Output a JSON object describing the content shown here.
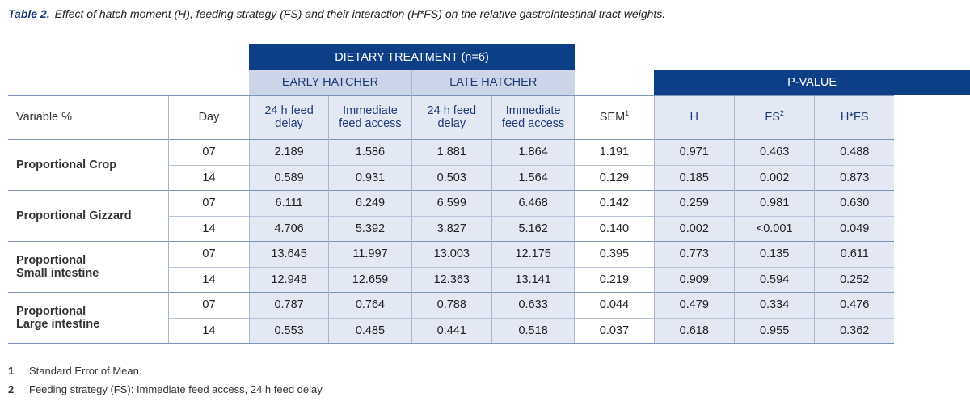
{
  "caption": {
    "label": "Table 2.",
    "text": "Effect of hatch moment (H), feeding strategy (FS) and their interaction (H*FS) on the relative gastrointestinal tract weights."
  },
  "header": {
    "dietary": "DIETARY TREATMENT (n=6)",
    "early": "EARLY HATCHER",
    "late": "LATE HATCHER",
    "pvalue": "P-VALUE",
    "variable": "Variable %",
    "day": "Day",
    "delay_early_1": "24 h feed",
    "delay_early_2": "delay",
    "imm_early_1": "Immediate",
    "imm_early_2": "feed access",
    "delay_late_1": "24 h feed",
    "delay_late_2": "delay",
    "imm_late_1": "Immediate",
    "imm_late_2": "feed access",
    "sem": "SEM",
    "sem_sup": "1",
    "h": "H",
    "fs": "FS",
    "fs_sup": "2",
    "hfs": "H*FS"
  },
  "groups": [
    {
      "label_1": "Proportional Crop",
      "label_2": "",
      "rows": [
        {
          "day": "07",
          "values": [
            "2.189",
            "1.586",
            "1.881",
            "1.864",
            "1.191",
            "0.971",
            "0.463",
            "0.488"
          ]
        },
        {
          "day": "14",
          "values": [
            "0.589",
            "0.931",
            "0.503",
            "1.564",
            "0.129",
            "0.185",
            "0.002",
            "0.873"
          ]
        }
      ]
    },
    {
      "label_1": "Proportional Gizzard",
      "label_2": "",
      "rows": [
        {
          "day": "07",
          "values": [
            "6.111",
            "6.249",
            "6.599",
            "6.468",
            "0.142",
            "0.259",
            "0.981",
            "0.630"
          ]
        },
        {
          "day": "14",
          "values": [
            "4.706",
            "5.392",
            "3.827",
            "5.162",
            "0.140",
            "0.002",
            "<0.001",
            "0.049"
          ]
        }
      ]
    },
    {
      "label_1": "Proportional",
      "label_2": "Small intestine",
      "rows": [
        {
          "day": "07",
          "values": [
            "13.645",
            "11.997",
            "13.003",
            "12.175",
            "0.395",
            "0.773",
            "0.135",
            "0.611"
          ]
        },
        {
          "day": "14",
          "values": [
            "12.948",
            "12.659",
            "12.363",
            "13.141",
            "0.219",
            "0.909",
            "0.594",
            "0.252"
          ]
        }
      ]
    },
    {
      "label_1": "Proportional",
      "label_2": "Large intestine",
      "rows": [
        {
          "day": "07",
          "values": [
            "0.787",
            "0.764",
            "0.788",
            "0.633",
            "0.044",
            "0.479",
            "0.334",
            "0.476"
          ]
        },
        {
          "day": "14",
          "values": [
            "0.553",
            "0.485",
            "0.441",
            "0.518",
            "0.037",
            "0.618",
            "0.955",
            "0.362"
          ]
        }
      ]
    }
  ],
  "footnotes": [
    {
      "num": "1",
      "text": "Standard Error of Mean."
    },
    {
      "num": "2",
      "text": "Feeding strategy (FS): Immediate feed access, 24 h feed delay"
    }
  ]
}
